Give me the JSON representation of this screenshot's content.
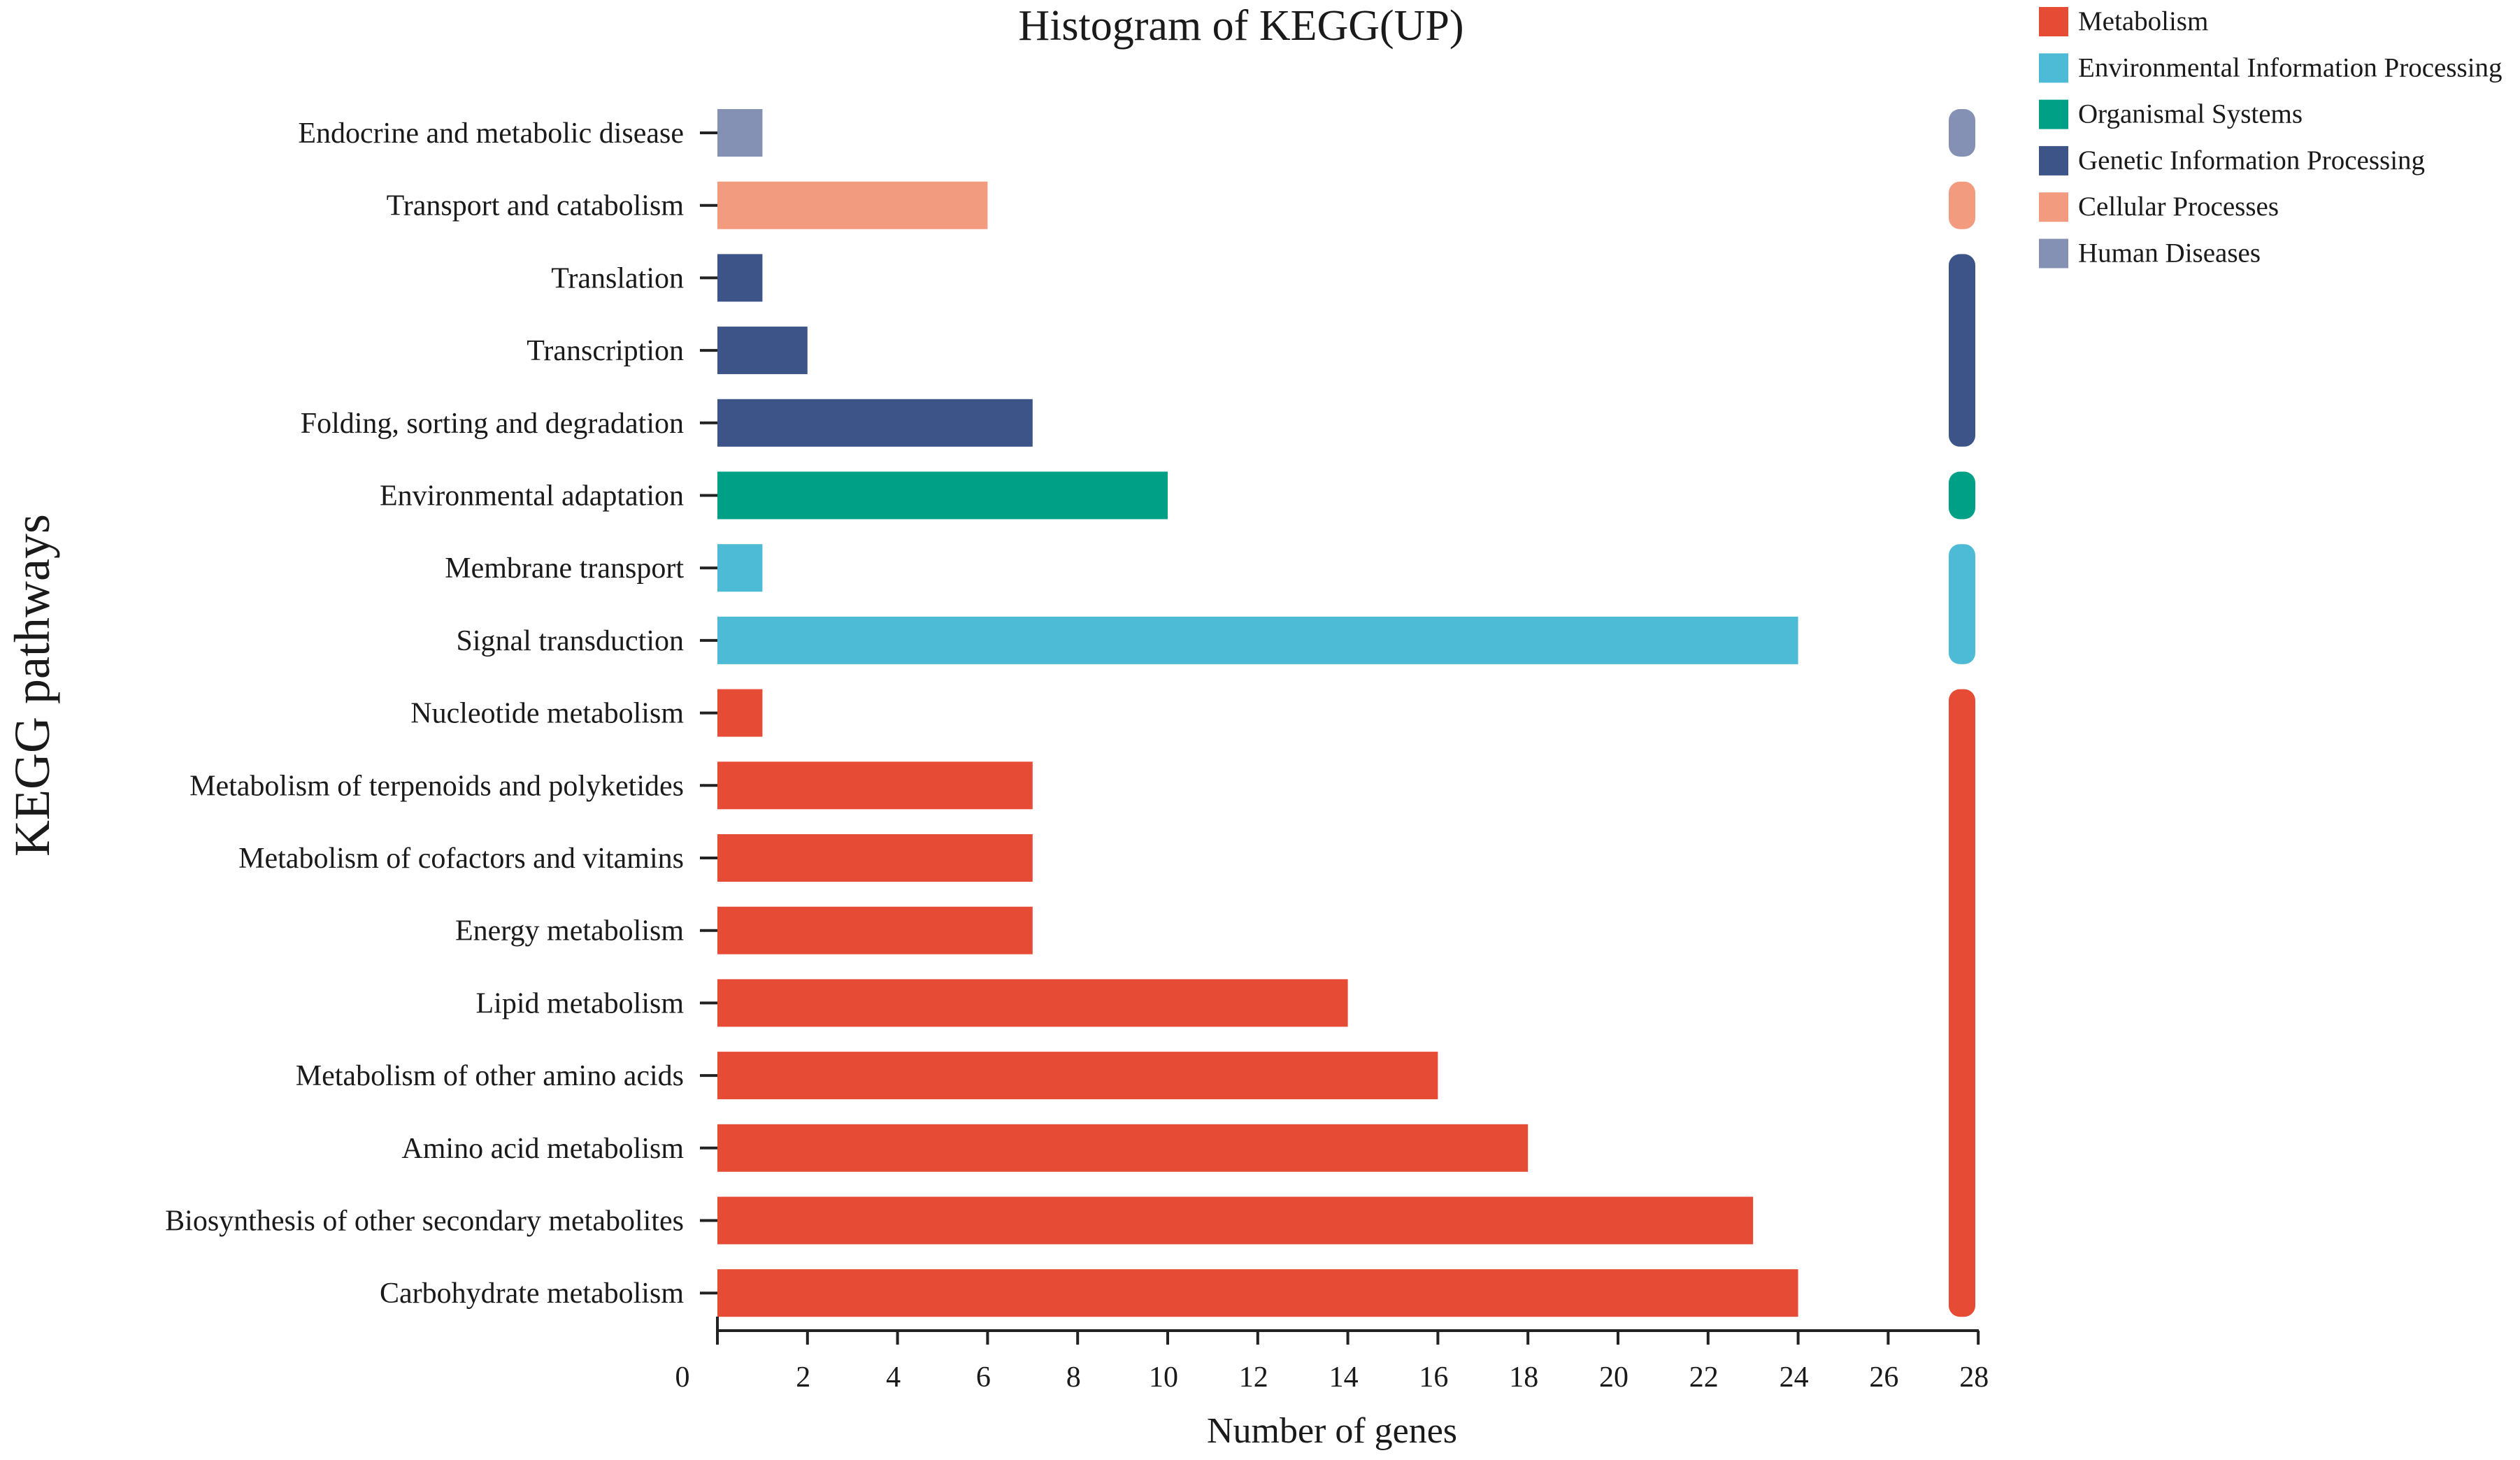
{
  "chart_data": {
    "type": "bar",
    "orientation": "horizontal",
    "title": "Histogram of KEGG(UP)",
    "xlabel": "Number of genes",
    "ylabel": "KEGG pathways",
    "xlim": [
      0,
      28
    ],
    "xticks": [
      "0",
      "2",
      "4",
      "6",
      "8",
      "10",
      "12",
      "14",
      "16",
      "18",
      "20",
      "22",
      "24",
      "26",
      "28"
    ],
    "grid": false,
    "legend_position": "top-right",
    "groups": [
      {
        "name": "Metabolism",
        "color": "#E64B35"
      },
      {
        "name": "Environmental Information Processing",
        "color": "#4DBBD5"
      },
      {
        "name": "Organismal Systems",
        "color": "#00A087"
      },
      {
        "name": "Genetic Information Processing",
        "color": "#3C5488"
      },
      {
        "name": "Cellular Processes",
        "color": "#F39B7F"
      },
      {
        "name": "Human Diseases",
        "color": "#8491B4"
      }
    ],
    "bars": [
      {
        "label": "Endocrine and metabolic disease",
        "value": 1,
        "group": "Human Diseases"
      },
      {
        "label": "Transport and catabolism",
        "value": 6,
        "group": "Cellular Processes"
      },
      {
        "label": "Translation",
        "value": 1,
        "group": "Genetic Information Processing"
      },
      {
        "label": "Transcription",
        "value": 2,
        "group": "Genetic Information Processing"
      },
      {
        "label": "Folding, sorting and degradation",
        "value": 7,
        "group": "Genetic Information Processing"
      },
      {
        "label": "Environmental adaptation",
        "value": 10,
        "group": "Organismal Systems"
      },
      {
        "label": "Membrane transport",
        "value": 1,
        "group": "Environmental Information Processing"
      },
      {
        "label": "Signal transduction",
        "value": 24,
        "group": "Environmental Information Processing"
      },
      {
        "label": "Nucleotide metabolism",
        "value": 1,
        "group": "Metabolism"
      },
      {
        "label": "Metabolism of terpenoids and polyketides",
        "value": 7,
        "group": "Metabolism"
      },
      {
        "label": "Metabolism of cofactors and vitamins",
        "value": 7,
        "group": "Metabolism"
      },
      {
        "label": "Energy metabolism",
        "value": 7,
        "group": "Metabolism"
      },
      {
        "label": "Lipid metabolism",
        "value": 14,
        "group": "Metabolism"
      },
      {
        "label": "Metabolism of other amino acids",
        "value": 16,
        "group": "Metabolism"
      },
      {
        "label": "Amino acid metabolism",
        "value": 18,
        "group": "Metabolism"
      },
      {
        "label": "Biosynthesis of other secondary metabolites",
        "value": 23,
        "group": "Metabolism"
      },
      {
        "label": "Carbohydrate metabolism",
        "value": 24,
        "group": "Metabolism"
      }
    ]
  }
}
